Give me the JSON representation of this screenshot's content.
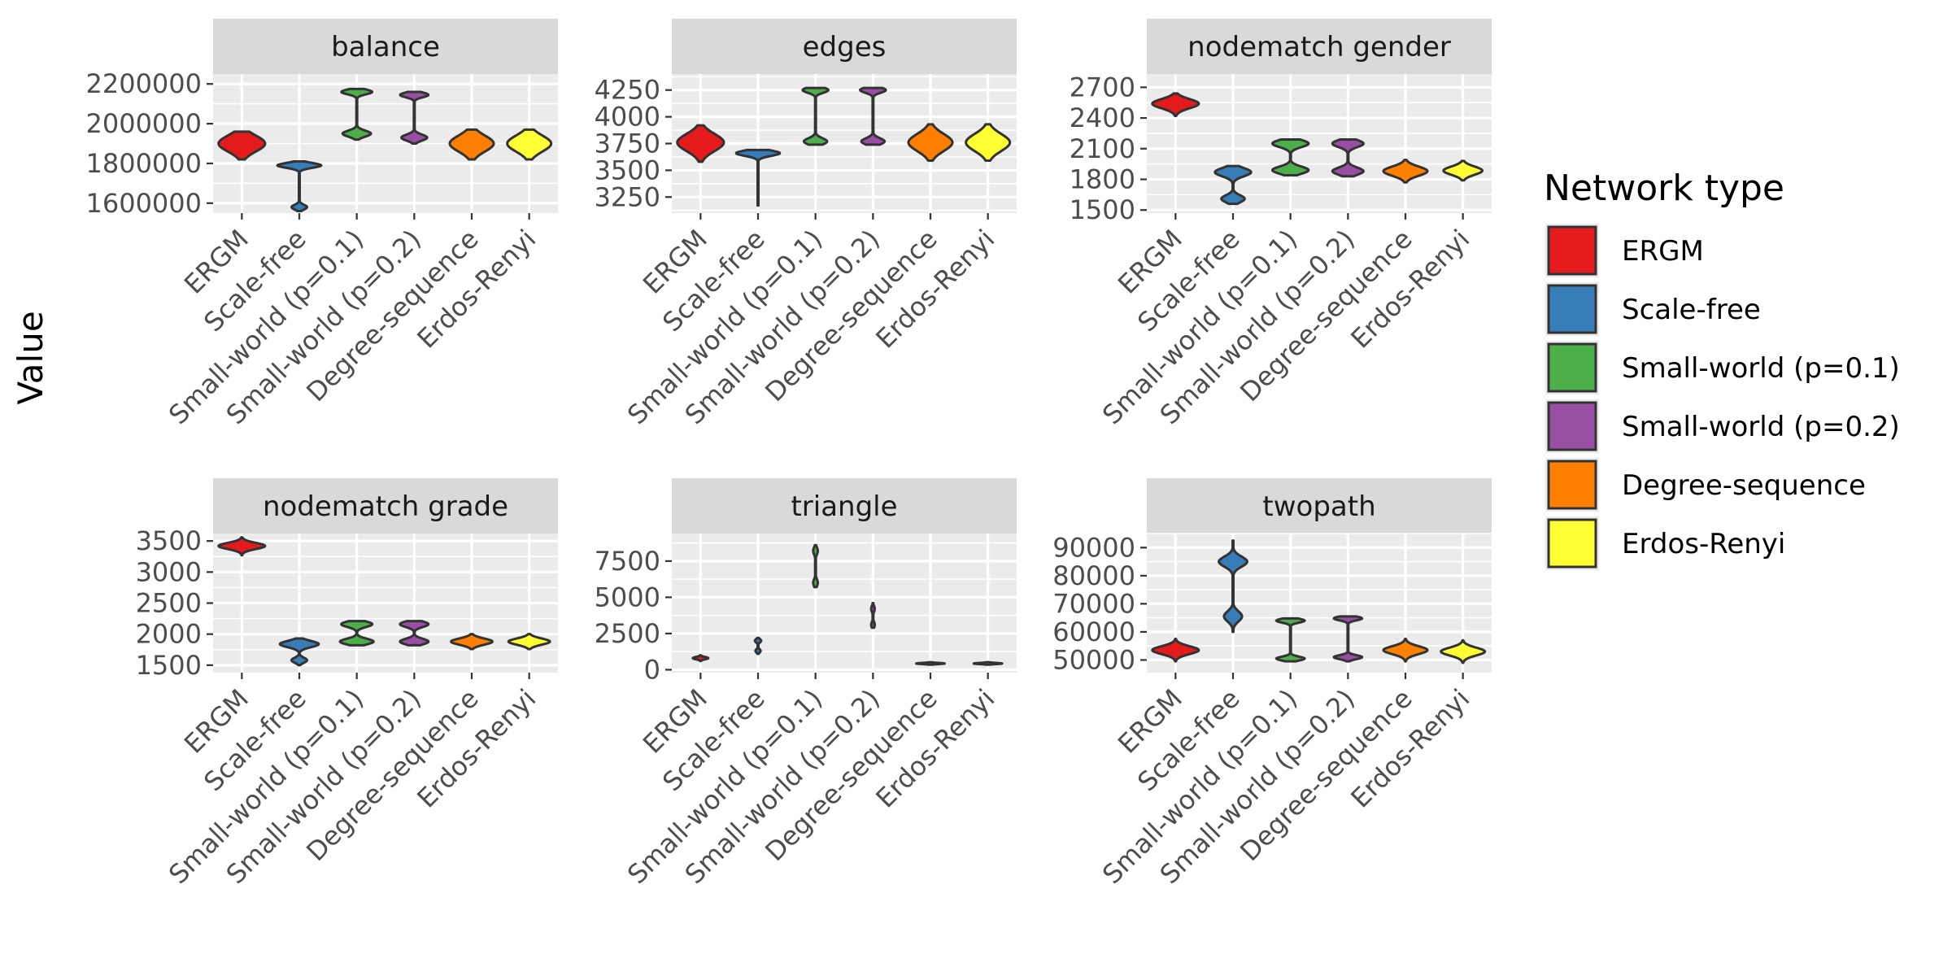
{
  "chart_data": {
    "type": "violin",
    "ylabel": "Value",
    "categories": [
      "ERGM",
      "Scale-free",
      "Small-world (p=0.1)",
      "Small-world (p=0.2)",
      "Degree-sequence",
      "Erdos-Renyi"
    ],
    "legend": {
      "title": "Network type",
      "placement": "right",
      "entries": [
        {
          "label": "ERGM",
          "color": "#E41A1C"
        },
        {
          "label": "Scale-free",
          "color": "#377EB8"
        },
        {
          "label": "Small-world (p=0.1)",
          "color": "#4DAF4A"
        },
        {
          "label": "Small-world (p=0.2)",
          "color": "#984EA3"
        },
        {
          "label": "Degree-sequence",
          "color": "#FF7F00"
        },
        {
          "label": "Erdos-Renyi",
          "color": "#FFFF33"
        }
      ]
    },
    "grid": true,
    "panels": [
      {
        "title": "balance",
        "ylim": [
          1550000,
          2250000
        ],
        "yticks": [
          1600000,
          1800000,
          2000000,
          2200000
        ],
        "yticklabels": [
          "1600000",
          "1800000",
          "2000000",
          "2200000"
        ],
        "violins": [
          {
            "lo": 1820000,
            "hi": 1960000,
            "modes": [
              [
                1900000,
                0.9,
                40000
              ]
            ]
          },
          {
            "lo": 1560000,
            "hi": 1810000,
            "modes": [
              [
                1790000,
                0.85,
                12000
              ],
              [
                1580000,
                0.3,
                12000
              ]
            ]
          },
          {
            "lo": 1920000,
            "hi": 2175000,
            "modes": [
              [
                1950000,
                0.55,
                15000
              ],
              [
                2160000,
                0.6,
                12000
              ]
            ]
          },
          {
            "lo": 1900000,
            "hi": 2160000,
            "modes": [
              [
                1930000,
                0.5,
                15000
              ],
              [
                2145000,
                0.55,
                12000
              ]
            ]
          },
          {
            "lo": 1820000,
            "hi": 1970000,
            "modes": [
              [
                1900000,
                0.85,
                40000
              ]
            ]
          },
          {
            "lo": 1820000,
            "hi": 1970000,
            "modes": [
              [
                1900000,
                0.85,
                40000
              ]
            ]
          }
        ]
      },
      {
        "title": "edges",
        "ylim": [
          3100000,
          4400000
        ],
        "scale": 0.001,
        "yticks": [
          3250,
          3500,
          3750,
          4000,
          4250
        ],
        "yticklabels": [
          "3250",
          "3500",
          "3750",
          "4000",
          "4250"
        ],
        "violins": [
          {
            "lo": 3580,
            "hi": 3920,
            "modes": [
              [
                3760,
                0.9,
                80
              ]
            ]
          },
          {
            "lo": 3170,
            "hi": 3690,
            "modes": [
              [
                3660,
                0.85,
                25
              ]
            ]
          },
          {
            "lo": 3740,
            "hi": 4270,
            "modes": [
              [
                3770,
                0.45,
                30
              ],
              [
                4250,
                0.5,
                25
              ]
            ]
          },
          {
            "lo": 3740,
            "hi": 4270,
            "modes": [
              [
                3770,
                0.45,
                30
              ],
              [
                4250,
                0.5,
                25
              ]
            ]
          },
          {
            "lo": 3590,
            "hi": 3930,
            "modes": [
              [
                3760,
                0.85,
                80
              ]
            ]
          },
          {
            "lo": 3590,
            "hi": 3930,
            "modes": [
              [
                3760,
                0.85,
                80
              ]
            ]
          }
        ]
      },
      {
        "title": "nodematch gender",
        "ylim": [
          1470,
          2830
        ],
        "yticks": [
          1500,
          1800,
          2100,
          2400,
          2700
        ],
        "yticklabels": [
          "1500",
          "1800",
          "2100",
          "2400",
          "2700"
        ],
        "violins": [
          {
            "lo": 2420,
            "hi": 2640,
            "modes": [
              [
                2540,
                0.9,
                45
              ]
            ]
          },
          {
            "lo": 1560,
            "hi": 1930,
            "modes": [
              [
                1870,
                0.7,
                40
              ],
              [
                1610,
                0.45,
                35
              ]
            ]
          },
          {
            "lo": 1840,
            "hi": 2190,
            "modes": [
              [
                1890,
                0.7,
                35
              ],
              [
                2150,
                0.7,
                35
              ]
            ]
          },
          {
            "lo": 1830,
            "hi": 2190,
            "modes": [
              [
                1880,
                0.6,
                35
              ],
              [
                2150,
                0.6,
                35
              ]
            ]
          },
          {
            "lo": 1770,
            "hi": 1990,
            "modes": [
              [
                1880,
                0.85,
                45
              ]
            ]
          },
          {
            "lo": 1790,
            "hi": 1980,
            "modes": [
              [
                1885,
                0.75,
                40
              ]
            ]
          }
        ]
      },
      {
        "title": "nodematch grade",
        "ylim": [
          1380,
          3620
        ],
        "yticks": [
          1500,
          2000,
          2500,
          3000,
          3500
        ],
        "yticklabels": [
          "1500",
          "2000",
          "2500",
          "3000",
          "3500"
        ],
        "violins": [
          {
            "lo": 3270,
            "hi": 3560,
            "modes": [
              [
                3420,
                0.9,
                50
              ]
            ]
          },
          {
            "lo": 1500,
            "hi": 1930,
            "modes": [
              [
                1840,
                0.75,
                50
              ],
              [
                1580,
                0.3,
                40
              ]
            ]
          },
          {
            "lo": 1820,
            "hi": 2210,
            "modes": [
              [
                1880,
                0.65,
                45
              ],
              [
                2160,
                0.6,
                45
              ]
            ]
          },
          {
            "lo": 1820,
            "hi": 2210,
            "modes": [
              [
                1880,
                0.55,
                45
              ],
              [
                2160,
                0.55,
                45
              ]
            ]
          },
          {
            "lo": 1760,
            "hi": 2000,
            "modes": [
              [
                1880,
                0.8,
                50
              ]
            ]
          },
          {
            "lo": 1760,
            "hi": 2000,
            "modes": [
              [
                1880,
                0.8,
                50
              ]
            ]
          }
        ]
      },
      {
        "title": "triangle",
        "ylim": [
          -200,
          9400
        ],
        "yticks": [
          0,
          2500,
          5000,
          7500
        ],
        "yticklabels": [
          "0",
          "2500",
          "5000",
          "7500"
        ],
        "violins": [
          {
            "lo": 600,
            "hi": 1000,
            "modes": [
              [
                800,
                0.3,
                80
              ]
            ]
          },
          {
            "lo": 1100,
            "hi": 2200,
            "modes": [
              [
                2000,
                0.12,
                120
              ],
              [
                1300,
                0.1,
                120
              ]
            ]
          },
          {
            "lo": 5700,
            "hi": 8600,
            "modes": [
              [
                8200,
                0.09,
                250
              ],
              [
                6000,
                0.09,
                250
              ]
            ]
          },
          {
            "lo": 2900,
            "hi": 4600,
            "modes": [
              [
                4200,
                0.07,
                200
              ],
              [
                3100,
                0.07,
                200
              ]
            ]
          },
          {
            "lo": 350,
            "hi": 520,
            "modes": [
              [
                430,
                0.55,
                40
              ]
            ]
          },
          {
            "lo": 350,
            "hi": 520,
            "modes": [
              [
                430,
                0.55,
                40
              ]
            ]
          }
        ]
      },
      {
        "title": "twopath",
        "ylim": [
          45500,
          95000
        ],
        "yticks": [
          50000,
          60000,
          70000,
          80000,
          90000
        ],
        "yticklabels": [
          "50000",
          "60000",
          "70000",
          "80000",
          "90000"
        ],
        "violins": [
          {
            "lo": 49500,
            "hi": 57500,
            "modes": [
              [
                53500,
                0.9,
                1400
              ]
            ]
          },
          {
            "lo": 60000,
            "hi": 92500,
            "modes": [
              [
                85000,
                0.55,
                1800
              ],
              [
                65500,
                0.35,
                1800
              ]
            ]
          },
          {
            "lo": 49500,
            "hi": 64800,
            "modes": [
              [
                50500,
                0.55,
                700
              ],
              [
                64000,
                0.55,
                700
              ]
            ]
          },
          {
            "lo": 49500,
            "hi": 65500,
            "modes": [
              [
                51000,
                0.55,
                700
              ],
              [
                64800,
                0.55,
                700
              ]
            ]
          },
          {
            "lo": 49500,
            "hi": 57500,
            "modes": [
              [
                53500,
                0.85,
                1400
              ]
            ]
          },
          {
            "lo": 49000,
            "hi": 57000,
            "modes": [
              [
                53000,
                0.85,
                1400
              ]
            ]
          }
        ]
      }
    ]
  }
}
